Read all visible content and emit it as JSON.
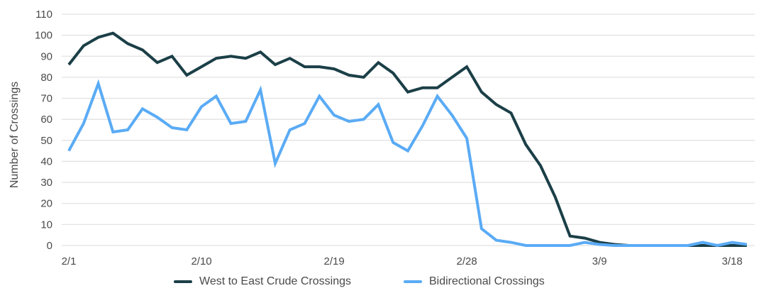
{
  "chart_data": {
    "type": "line",
    "title": "",
    "xlabel": "",
    "ylabel": "Number of Crossings",
    "ylim": [
      0,
      110
    ],
    "yticks": [
      0,
      10,
      20,
      30,
      40,
      50,
      60,
      70,
      80,
      90,
      100,
      110
    ],
    "xtick_labels": [
      "2/1",
      "2/10",
      "2/19",
      "2/28",
      "3/9",
      "3/18"
    ],
    "xtick_indices": [
      0,
      9,
      18,
      27,
      36,
      45
    ],
    "grid": true,
    "legend_position": "bottom",
    "x": [
      "2/1",
      "2/2",
      "2/3",
      "2/4",
      "2/5",
      "2/6",
      "2/7",
      "2/8",
      "2/9",
      "2/10",
      "2/11",
      "2/12",
      "2/13",
      "2/14",
      "2/15",
      "2/16",
      "2/17",
      "2/18",
      "2/19",
      "2/20",
      "2/21",
      "2/22",
      "2/23",
      "2/24",
      "2/25",
      "2/26",
      "2/27",
      "2/28",
      "2/29",
      "3/1",
      "3/2",
      "3/3",
      "3/4",
      "3/5",
      "3/6",
      "3/7",
      "3/8",
      "3/9",
      "3/10",
      "3/11",
      "3/12",
      "3/13",
      "3/14",
      "3/15",
      "3/16",
      "3/17",
      "3/18"
    ],
    "series": [
      {
        "name": "West to East Crude Crossings",
        "color": "#1b3f47",
        "values": [
          86,
          95,
          99,
          101,
          96,
          93,
          87,
          90,
          81,
          85,
          89,
          90,
          89,
          92,
          86,
          89,
          85,
          85,
          84,
          81,
          80,
          87,
          82,
          73,
          75,
          75,
          80,
          85,
          73,
          67,
          63,
          48,
          38,
          23,
          4.5,
          3.5,
          1.5,
          0.5,
          0,
          0,
          0,
          0,
          0,
          0,
          0,
          0,
          0
        ]
      },
      {
        "name": "Bidirectional Crossings",
        "color": "#5aabf5",
        "values": [
          45,
          58,
          77,
          54,
          55,
          65,
          61,
          56,
          55,
          66,
          71,
          58,
          59,
          74,
          39,
          55,
          58,
          71,
          62,
          59,
          60,
          67,
          49,
          45,
          57,
          71,
          62,
          51,
          8,
          2.5,
          1.5,
          0,
          0,
          0,
          0,
          1.5,
          0.5,
          0,
          0,
          0,
          0,
          0,
          0,
          1.5,
          0,
          1.5,
          0.5
        ]
      }
    ]
  },
  "legend": {
    "items": [
      {
        "label": "West to East Crude Crossings",
        "color": "#1b3f47"
      },
      {
        "label": "Bidirectional Crossings",
        "color": "#5aabf5"
      }
    ]
  }
}
